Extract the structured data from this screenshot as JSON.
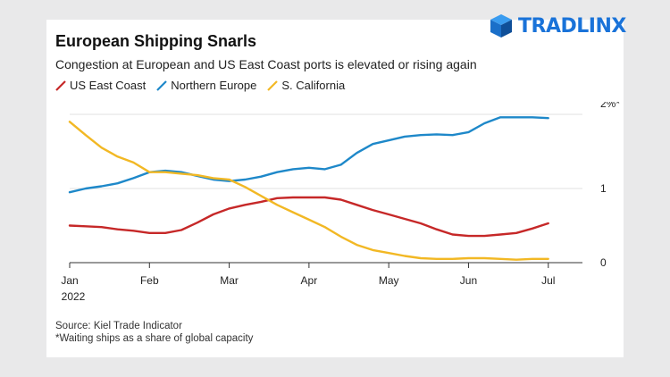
{
  "logo": {
    "text": "TRADLINX",
    "icon": "cube-icon",
    "color": "#1a73d9"
  },
  "chart_data": {
    "type": "line",
    "title": "European Shipping Snarls",
    "subtitle": "Congestion at European and US East Coast ports is elevated or rising again",
    "ylim": [
      0,
      2
    ],
    "yticks": [
      {
        "value": 0,
        "label": "0"
      },
      {
        "value": 1,
        "label": "1"
      },
      {
        "value": 2,
        "label": "2%*"
      }
    ],
    "xlim": [
      0,
      6.07
    ],
    "xticks": [
      {
        "value": 0,
        "label": "Jan",
        "sublabel": "2022"
      },
      {
        "value": 1,
        "label": "Feb"
      },
      {
        "value": 2,
        "label": "Mar"
      },
      {
        "value": 3,
        "label": "Apr"
      },
      {
        "value": 4,
        "label": "May"
      },
      {
        "value": 5,
        "label": "Jun"
      },
      {
        "value": 6,
        "label": "Jul"
      }
    ],
    "grid": true,
    "legend_position": "top-left",
    "series": [
      {
        "name": "US East Coast",
        "color": "#c62828",
        "x": [
          0,
          0.2,
          0.4,
          0.6,
          0.8,
          1.0,
          1.2,
          1.4,
          1.6,
          1.8,
          2.0,
          2.2,
          2.4,
          2.6,
          2.8,
          3.0,
          3.2,
          3.4,
          3.6,
          3.8,
          4.0,
          4.2,
          4.4,
          4.6,
          4.8,
          5.0,
          5.2,
          5.4,
          5.6,
          5.8,
          6.0
        ],
        "y": [
          0.5,
          0.49,
          0.48,
          0.45,
          0.43,
          0.4,
          0.4,
          0.44,
          0.54,
          0.65,
          0.73,
          0.78,
          0.82,
          0.87,
          0.88,
          0.88,
          0.88,
          0.85,
          0.78,
          0.71,
          0.65,
          0.59,
          0.53,
          0.45,
          0.38,
          0.36,
          0.36,
          0.38,
          0.4,
          0.46,
          0.53
        ]
      },
      {
        "name": "Northern Europe",
        "color": "#1e88c9",
        "x": [
          0,
          0.2,
          0.4,
          0.6,
          0.8,
          1.0,
          1.2,
          1.4,
          1.6,
          1.8,
          2.0,
          2.2,
          2.4,
          2.6,
          2.8,
          3.0,
          3.2,
          3.4,
          3.6,
          3.8,
          4.0,
          4.2,
          4.4,
          4.6,
          4.8,
          5.0,
          5.2,
          5.4,
          5.6,
          5.8,
          6.0
        ],
        "y": [
          0.95,
          1.0,
          1.03,
          1.07,
          1.14,
          1.22,
          1.24,
          1.22,
          1.17,
          1.12,
          1.1,
          1.12,
          1.16,
          1.22,
          1.26,
          1.28,
          1.26,
          1.32,
          1.48,
          1.6,
          1.65,
          1.7,
          1.72,
          1.73,
          1.72,
          1.76,
          1.88,
          1.96,
          1.96,
          1.96,
          1.95
        ]
      },
      {
        "name": "S. California",
        "color": "#f2b824",
        "x": [
          0,
          0.2,
          0.4,
          0.6,
          0.8,
          1.0,
          1.2,
          1.4,
          1.6,
          1.8,
          2.0,
          2.2,
          2.4,
          2.6,
          2.8,
          3.0,
          3.2,
          3.4,
          3.6,
          3.8,
          4.0,
          4.2,
          4.4,
          4.6,
          4.8,
          5.0,
          5.2,
          5.4,
          5.6,
          5.8,
          6.0
        ],
        "y": [
          1.9,
          1.72,
          1.55,
          1.43,
          1.35,
          1.22,
          1.22,
          1.2,
          1.18,
          1.14,
          1.12,
          1.02,
          0.9,
          0.78,
          0.68,
          0.58,
          0.48,
          0.35,
          0.24,
          0.17,
          0.13,
          0.09,
          0.06,
          0.05,
          0.05,
          0.06,
          0.06,
          0.05,
          0.04,
          0.05,
          0.05
        ]
      }
    ],
    "notes": [
      "Source: Kiel Trade Indicator",
      "*Waiting ships as a share of global capacity"
    ]
  }
}
